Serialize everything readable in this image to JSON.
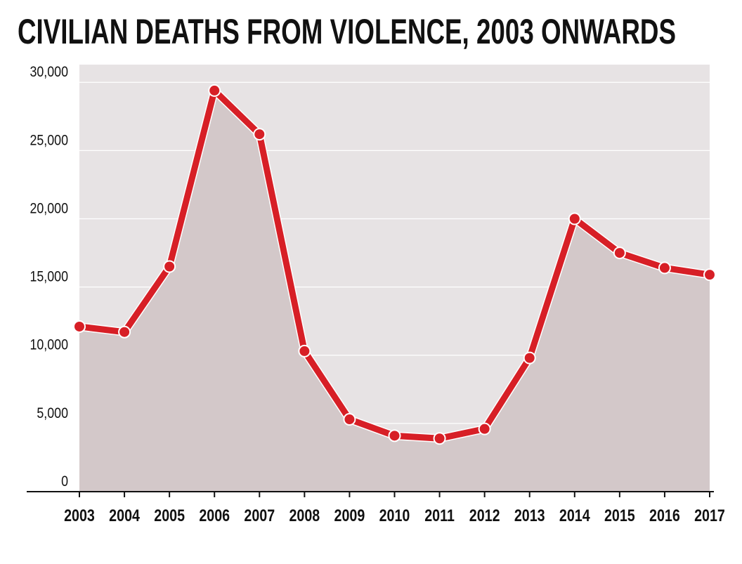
{
  "chart_data": {
    "type": "area-line",
    "title": "CIVILIAN DEATHS FROM VIOLENCE, 2003 ONWARDS",
    "categories": [
      "2003",
      "2004",
      "2005",
      "2006",
      "2007",
      "2008",
      "2009",
      "2010",
      "2011",
      "2012",
      "2013",
      "2014",
      "2015",
      "2016",
      "2017"
    ],
    "values": [
      12100,
      11700,
      16500,
      29400,
      26200,
      10300,
      5300,
      4100,
      3900,
      4600,
      9800,
      20000,
      17500,
      16400,
      15900
    ],
    "color": "#d71f26",
    "area_color": "#d3c8c9",
    "ylim": [
      0,
      31300
    ],
    "yticks": [
      0,
      {
        "value": 5000,
        "label": "5,000"
      },
      {
        "value": 10000,
        "label": "10,000"
      },
      {
        "value": 15000,
        "label": "15,000"
      },
      {
        "value": 20000,
        "label": "20,000"
      },
      {
        "value": 25000,
        "label": "25,000"
      },
      {
        "value": 30000,
        "label": "30,000"
      }
    ],
    "grid": true
  }
}
